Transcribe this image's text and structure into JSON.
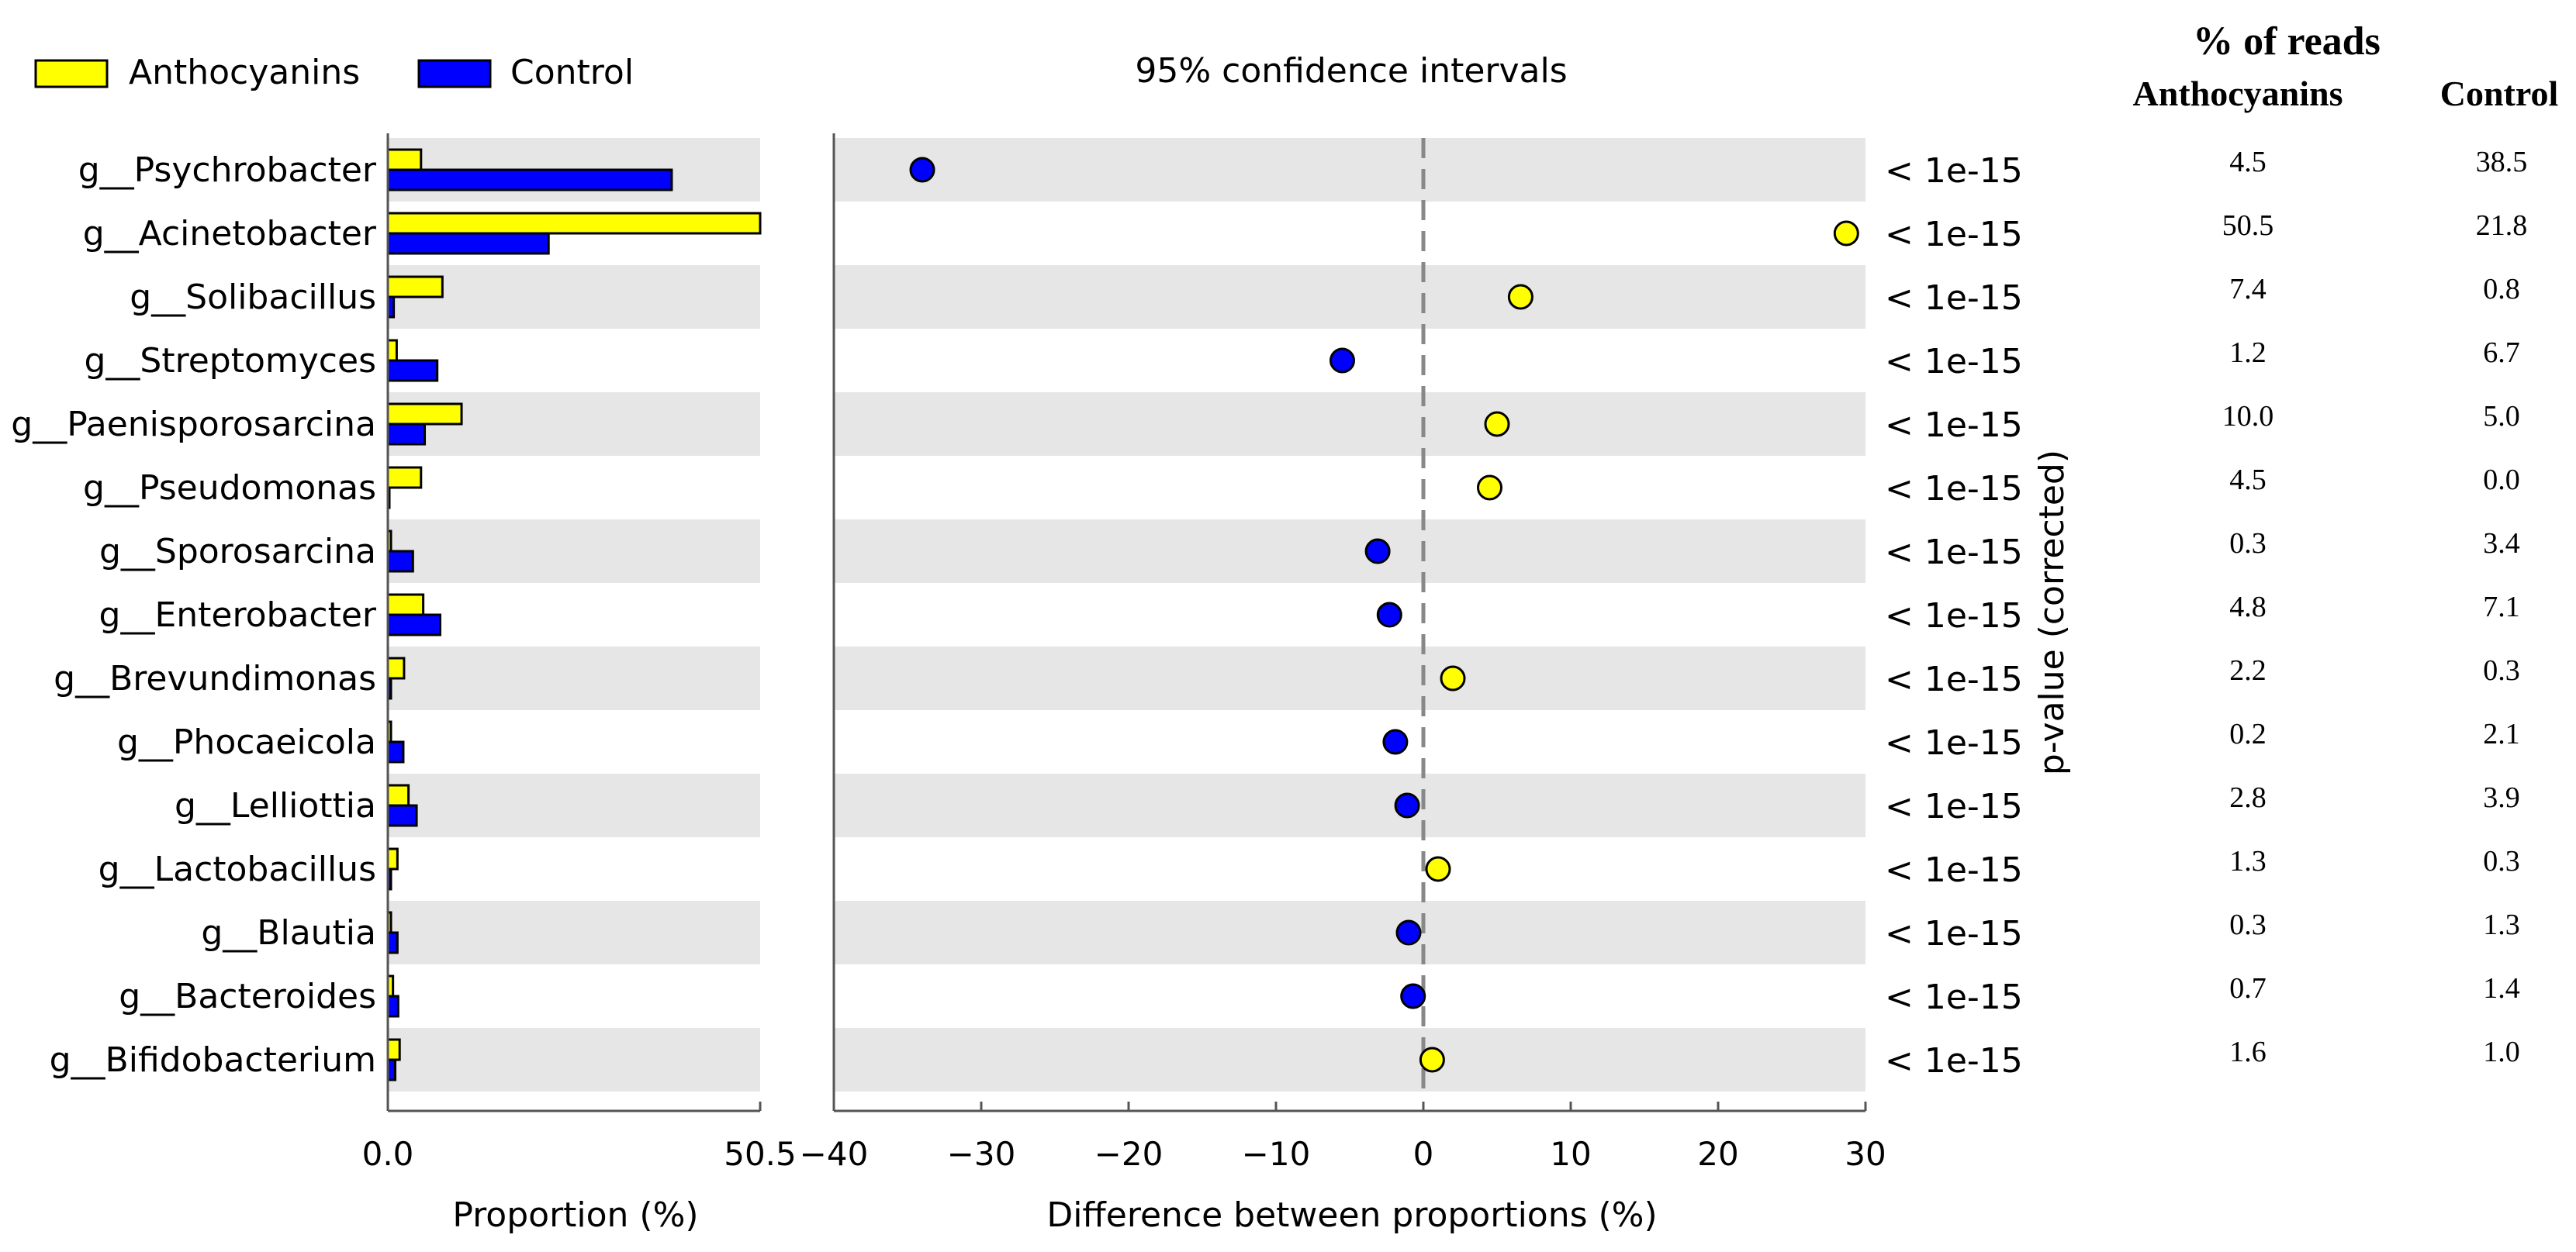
{
  "colors": {
    "anthocyanins": "#ffff00",
    "control": "#0000ff",
    "band": "#e6e6e6",
    "axis": "#555555",
    "zero_line": "#888888"
  },
  "legend": {
    "anthocyanins": "Anthocyanins",
    "control": "Control"
  },
  "ci_title": "95% confidence intervals",
  "reads_table": {
    "title": "% of reads",
    "col_anthocyanins": "Anthocyanins",
    "col_control": "Control"
  },
  "chart_data": {
    "type": "extended_error_bar",
    "genera": [
      "g__Psychrobacter",
      "g__Acinetobacter",
      "g__Solibacillus",
      "g__Streptomyces",
      "g__Paenisporosarcina",
      "g__Pseudomonas",
      "g__Sporosarcina",
      "g__Enterobacter",
      "g__Brevundimonas",
      "g__Phocaeicola",
      "g__Lelliottia",
      "g__Lactobacillus",
      "g__Blautia",
      "g__Bacteroides",
      "g__Bifidobacterium"
    ],
    "proportion_panel": {
      "xlabel": "Proportion (%)",
      "xlim": [
        0,
        50.5
      ],
      "xticks": [
        "0.0",
        "50.5"
      ],
      "series": [
        {
          "name": "Anthocyanins",
          "values": [
            4.5,
            50.5,
            7.4,
            1.2,
            10.0,
            4.5,
            0.3,
            4.8,
            2.2,
            0.2,
            2.8,
            1.3,
            0.3,
            0.7,
            1.6
          ]
        },
        {
          "name": "Control",
          "values": [
            38.5,
            21.8,
            0.8,
            6.7,
            5.0,
            0.0,
            3.4,
            7.1,
            0.3,
            2.1,
            3.9,
            0.3,
            1.3,
            1.4,
            1.0
          ]
        }
      ]
    },
    "difference_panel": {
      "xlabel": "Difference between proportions (%)",
      "xlim": [
        -40,
        30
      ],
      "xticks": [
        "−40",
        "−30",
        "−20",
        "−10",
        "0",
        "10",
        "20",
        "30"
      ],
      "xtick_values": [
        -40,
        -30,
        -20,
        -10,
        0,
        10,
        20,
        30
      ],
      "differences": [
        -34.0,
        28.7,
        6.6,
        -5.5,
        5.0,
        4.5,
        -3.1,
        -2.3,
        2.0,
        -1.9,
        -1.1,
        1.0,
        -1.0,
        -0.7,
        0.6
      ]
    },
    "p_values": [
      "< 1e-15",
      "< 1e-15",
      "< 1e-15",
      "< 1e-15",
      "< 1e-15",
      "< 1e-15",
      "< 1e-15",
      "< 1e-15",
      "< 1e-15",
      "< 1e-15",
      "< 1e-15",
      "< 1e-15",
      "< 1e-15",
      "< 1e-15",
      "< 1e-15"
    ],
    "p_value_label": "p-value (corrected)",
    "reads_anthocyanins": [
      "4.5",
      "50.5",
      "7.4",
      "1.2",
      "10.0",
      "4.5",
      "0.3",
      "4.8",
      "2.2",
      "0.2",
      "2.8",
      "1.3",
      "0.3",
      "0.7",
      "1.6"
    ],
    "reads_control": [
      "38.5",
      "21.8",
      "0.8",
      "6.7",
      "5.0",
      "0.0",
      "3.4",
      "7.1",
      "0.3",
      "2.1",
      "3.9",
      "0.3",
      "1.3",
      "1.4",
      "1.0"
    ]
  }
}
